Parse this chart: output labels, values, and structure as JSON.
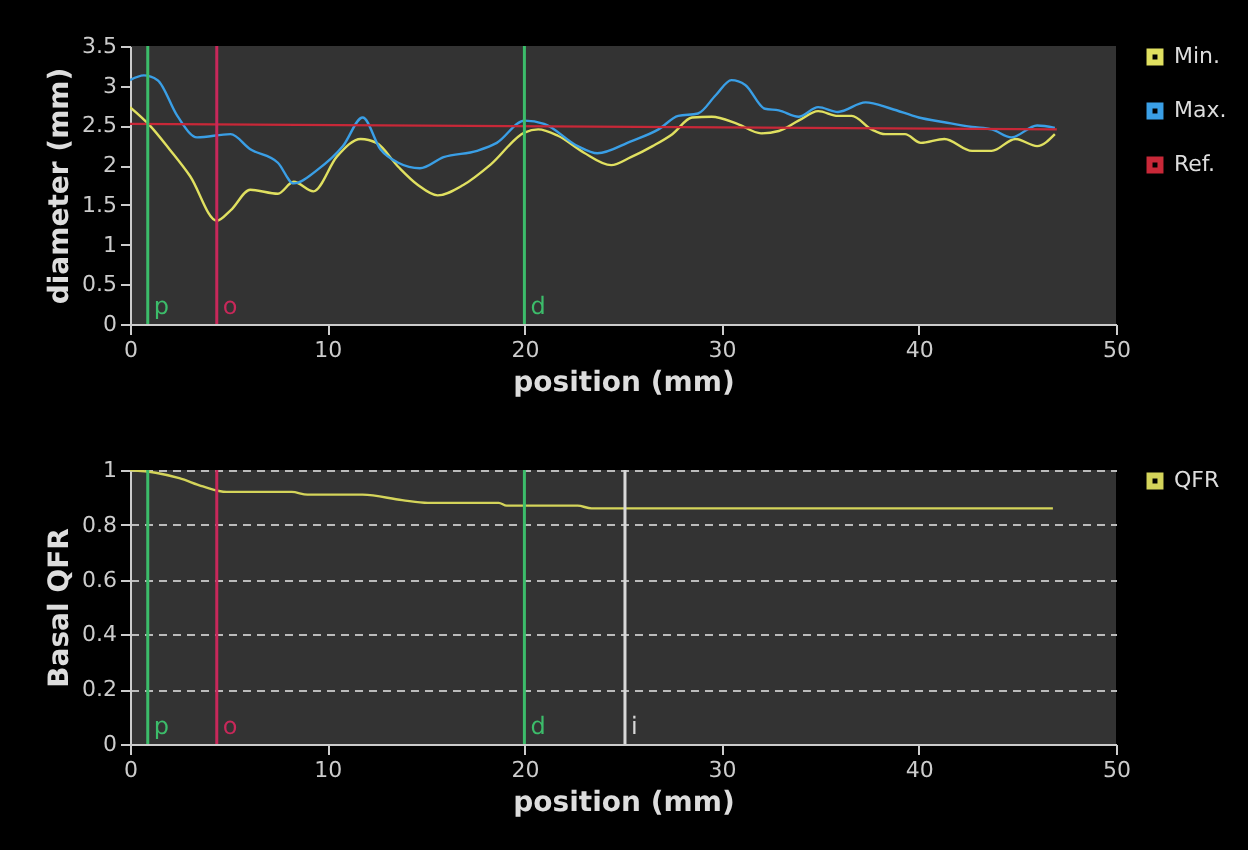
{
  "chart_data": [
    {
      "type": "line",
      "xlabel": "position (mm)",
      "ylabel": "diameter (mm)",
      "xlim": [
        0,
        50
      ],
      "xticks": [
        0,
        10,
        20,
        30,
        40,
        50
      ],
      "ylim": [
        0,
        3.5
      ],
      "yticks": [
        0,
        0.5,
        1,
        1.5,
        2,
        2.5,
        3,
        3.5
      ],
      "grid": false,
      "legend": "top right",
      "series": [
        {
          "name": "Min.",
          "color": "#e0e060",
          "x": [
            0,
            1,
            2,
            3.05,
            4.4,
            5.1,
            6.1,
            7.5,
            8.3,
            9.3,
            10.5,
            11.7,
            12.5,
            13.6,
            14.6,
            15.6,
            16.9,
            18.3,
            20,
            20.7,
            21.7,
            23,
            24.4,
            25.4,
            26.5,
            27.5,
            28.5,
            29.5,
            30.8,
            32,
            32.9,
            33.9,
            34.9,
            35.9,
            36.6,
            37.6,
            38.3,
            39.3,
            40.1,
            41.3,
            42.7,
            43.7,
            44.9,
            46,
            46.9
          ],
          "values": [
            2.73,
            2.5,
            2.2,
            1.86,
            1.3,
            1.43,
            1.69,
            1.64,
            1.79,
            1.67,
            2.11,
            2.33,
            2.28,
            1.98,
            1.75,
            1.62,
            1.75,
            2.01,
            2.41,
            2.45,
            2.37,
            2.16,
            2.0,
            2.1,
            2.24,
            2.39,
            2.6,
            2.61,
            2.52,
            2.4,
            2.43,
            2.56,
            2.68,
            2.62,
            2.62,
            2.45,
            2.39,
            2.39,
            2.28,
            2.33,
            2.18,
            2.18,
            2.33,
            2.24,
            2.39
          ]
        },
        {
          "name": "Max.",
          "color": "#3a9fe6",
          "x": [
            0,
            0.7,
            1.4,
            2.4,
            3.4,
            5.1,
            6.1,
            7.5,
            8.3,
            9.5,
            10.8,
            11.8,
            12.7,
            13.6,
            14.7,
            15.9,
            17.6,
            18.6,
            20,
            21,
            22.7,
            23.7,
            25.4,
            26.8,
            27.8,
            28.8,
            29.7,
            30.5,
            31.2,
            32.2,
            32.9,
            33.9,
            34.9,
            35.9,
            37.3,
            38.6,
            40,
            41.3,
            42.7,
            43.7,
            44.7,
            46,
            46.9
          ],
          "values": [
            3.07,
            3.13,
            3.07,
            2.62,
            2.35,
            2.39,
            2.2,
            2.03,
            1.77,
            1.94,
            2.24,
            2.6,
            2.2,
            2.03,
            1.96,
            2.1,
            2.18,
            2.28,
            2.56,
            2.52,
            2.24,
            2.15,
            2.3,
            2.45,
            2.62,
            2.65,
            2.88,
            3.07,
            3.01,
            2.71,
            2.69,
            2.61,
            2.73,
            2.67,
            2.79,
            2.71,
            2.6,
            2.54,
            2.48,
            2.45,
            2.35,
            2.5,
            2.47
          ]
        },
        {
          "name": "Ref.",
          "color": "#c82838",
          "x": [
            0,
            47
          ],
          "values": [
            2.52,
            2.45
          ]
        }
      ],
      "ref_lines": [
        {
          "axis": "x",
          "value": 0.9,
          "label": "p",
          "color": "#3cbc6a"
        },
        {
          "axis": "x",
          "value": 4.4,
          "label": "o",
          "color": "#c8285a"
        },
        {
          "axis": "x",
          "value": 20,
          "label": "d",
          "color": "#3cbc6a"
        }
      ]
    },
    {
      "type": "line",
      "xlabel": "position (mm)",
      "ylabel": "Basal QFR",
      "xlim": [
        0,
        50
      ],
      "xticks": [
        0,
        10,
        20,
        30,
        40,
        50
      ],
      "ylim": [
        0,
        1
      ],
      "yticks": [
        0,
        0.2,
        0.4,
        0.6,
        0.8,
        1
      ],
      "grid": "y",
      "legend": "top right",
      "series": [
        {
          "name": "QFR",
          "color": "#d4d45a",
          "x": [
            0,
            1.3,
            2.5,
            3.7,
            4.9,
            8.2,
            9,
            11.8,
            13.8,
            15.1,
            18.7,
            19.1,
            22.7,
            23.4,
            46.8
          ],
          "values": [
            1,
            0.99,
            0.97,
            0.94,
            0.92,
            0.92,
            0.91,
            0.91,
            0.89,
            0.88,
            0.88,
            0.87,
            0.87,
            0.86,
            0.86
          ]
        }
      ],
      "ref_lines": [
        {
          "axis": "x",
          "value": 0.9,
          "label": "p",
          "color": "#3cbc6a"
        },
        {
          "axis": "x",
          "value": 4.4,
          "label": "o",
          "color": "#c8285a"
        },
        {
          "axis": "x",
          "value": 20,
          "label": "d",
          "color": "#3cbc6a"
        },
        {
          "axis": "x",
          "value": 25.1,
          "label": "i",
          "color": "#d8d8d8"
        }
      ]
    }
  ]
}
